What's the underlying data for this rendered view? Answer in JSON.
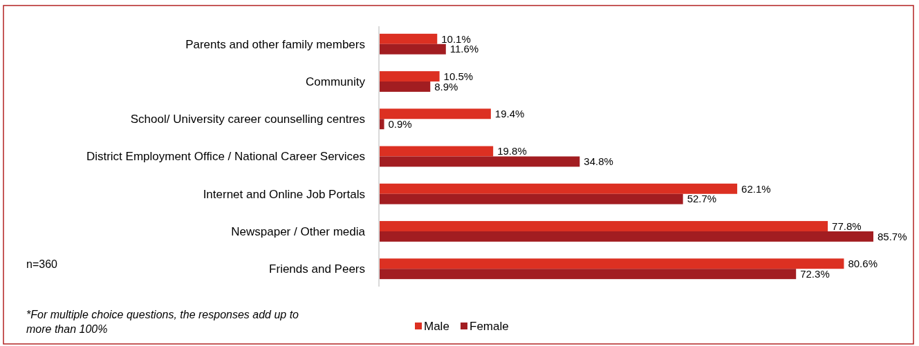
{
  "chart_data": {
    "type": "bar",
    "orientation": "horizontal",
    "categories": [
      "Parents and other family members",
      "Community",
      "School/ University career counselling centres",
      "District Employment Office / National Career Services",
      "Internet and Online Job Portals",
      "Newspaper / Other media",
      "Friends and Peers"
    ],
    "series": [
      {
        "name": "Male",
        "color": "#dc3022",
        "values": [
          10.1,
          10.5,
          19.4,
          19.8,
          62.1,
          77.8,
          80.6
        ],
        "value_labels": [
          "10.1%",
          "10.5%",
          "19.4%",
          "19.8%",
          "62.1%",
          "77.8%",
          "80.6%"
        ]
      },
      {
        "name": "Female",
        "color": "#a21d21",
        "values": [
          11.6,
          8.9,
          0.9,
          34.8,
          52.7,
          85.7,
          72.3
        ],
        "value_labels": [
          "11.6%",
          "8.9%",
          "0.9%",
          "34.8%",
          "52.7%",
          "85.7%",
          "72.3%"
        ]
      }
    ],
    "tick_labels": "y",
    "legend": "bottom",
    "annotations": [
      "n=360",
      "*For multiple choice questions, the responses add up to more than 100%"
    ]
  }
}
